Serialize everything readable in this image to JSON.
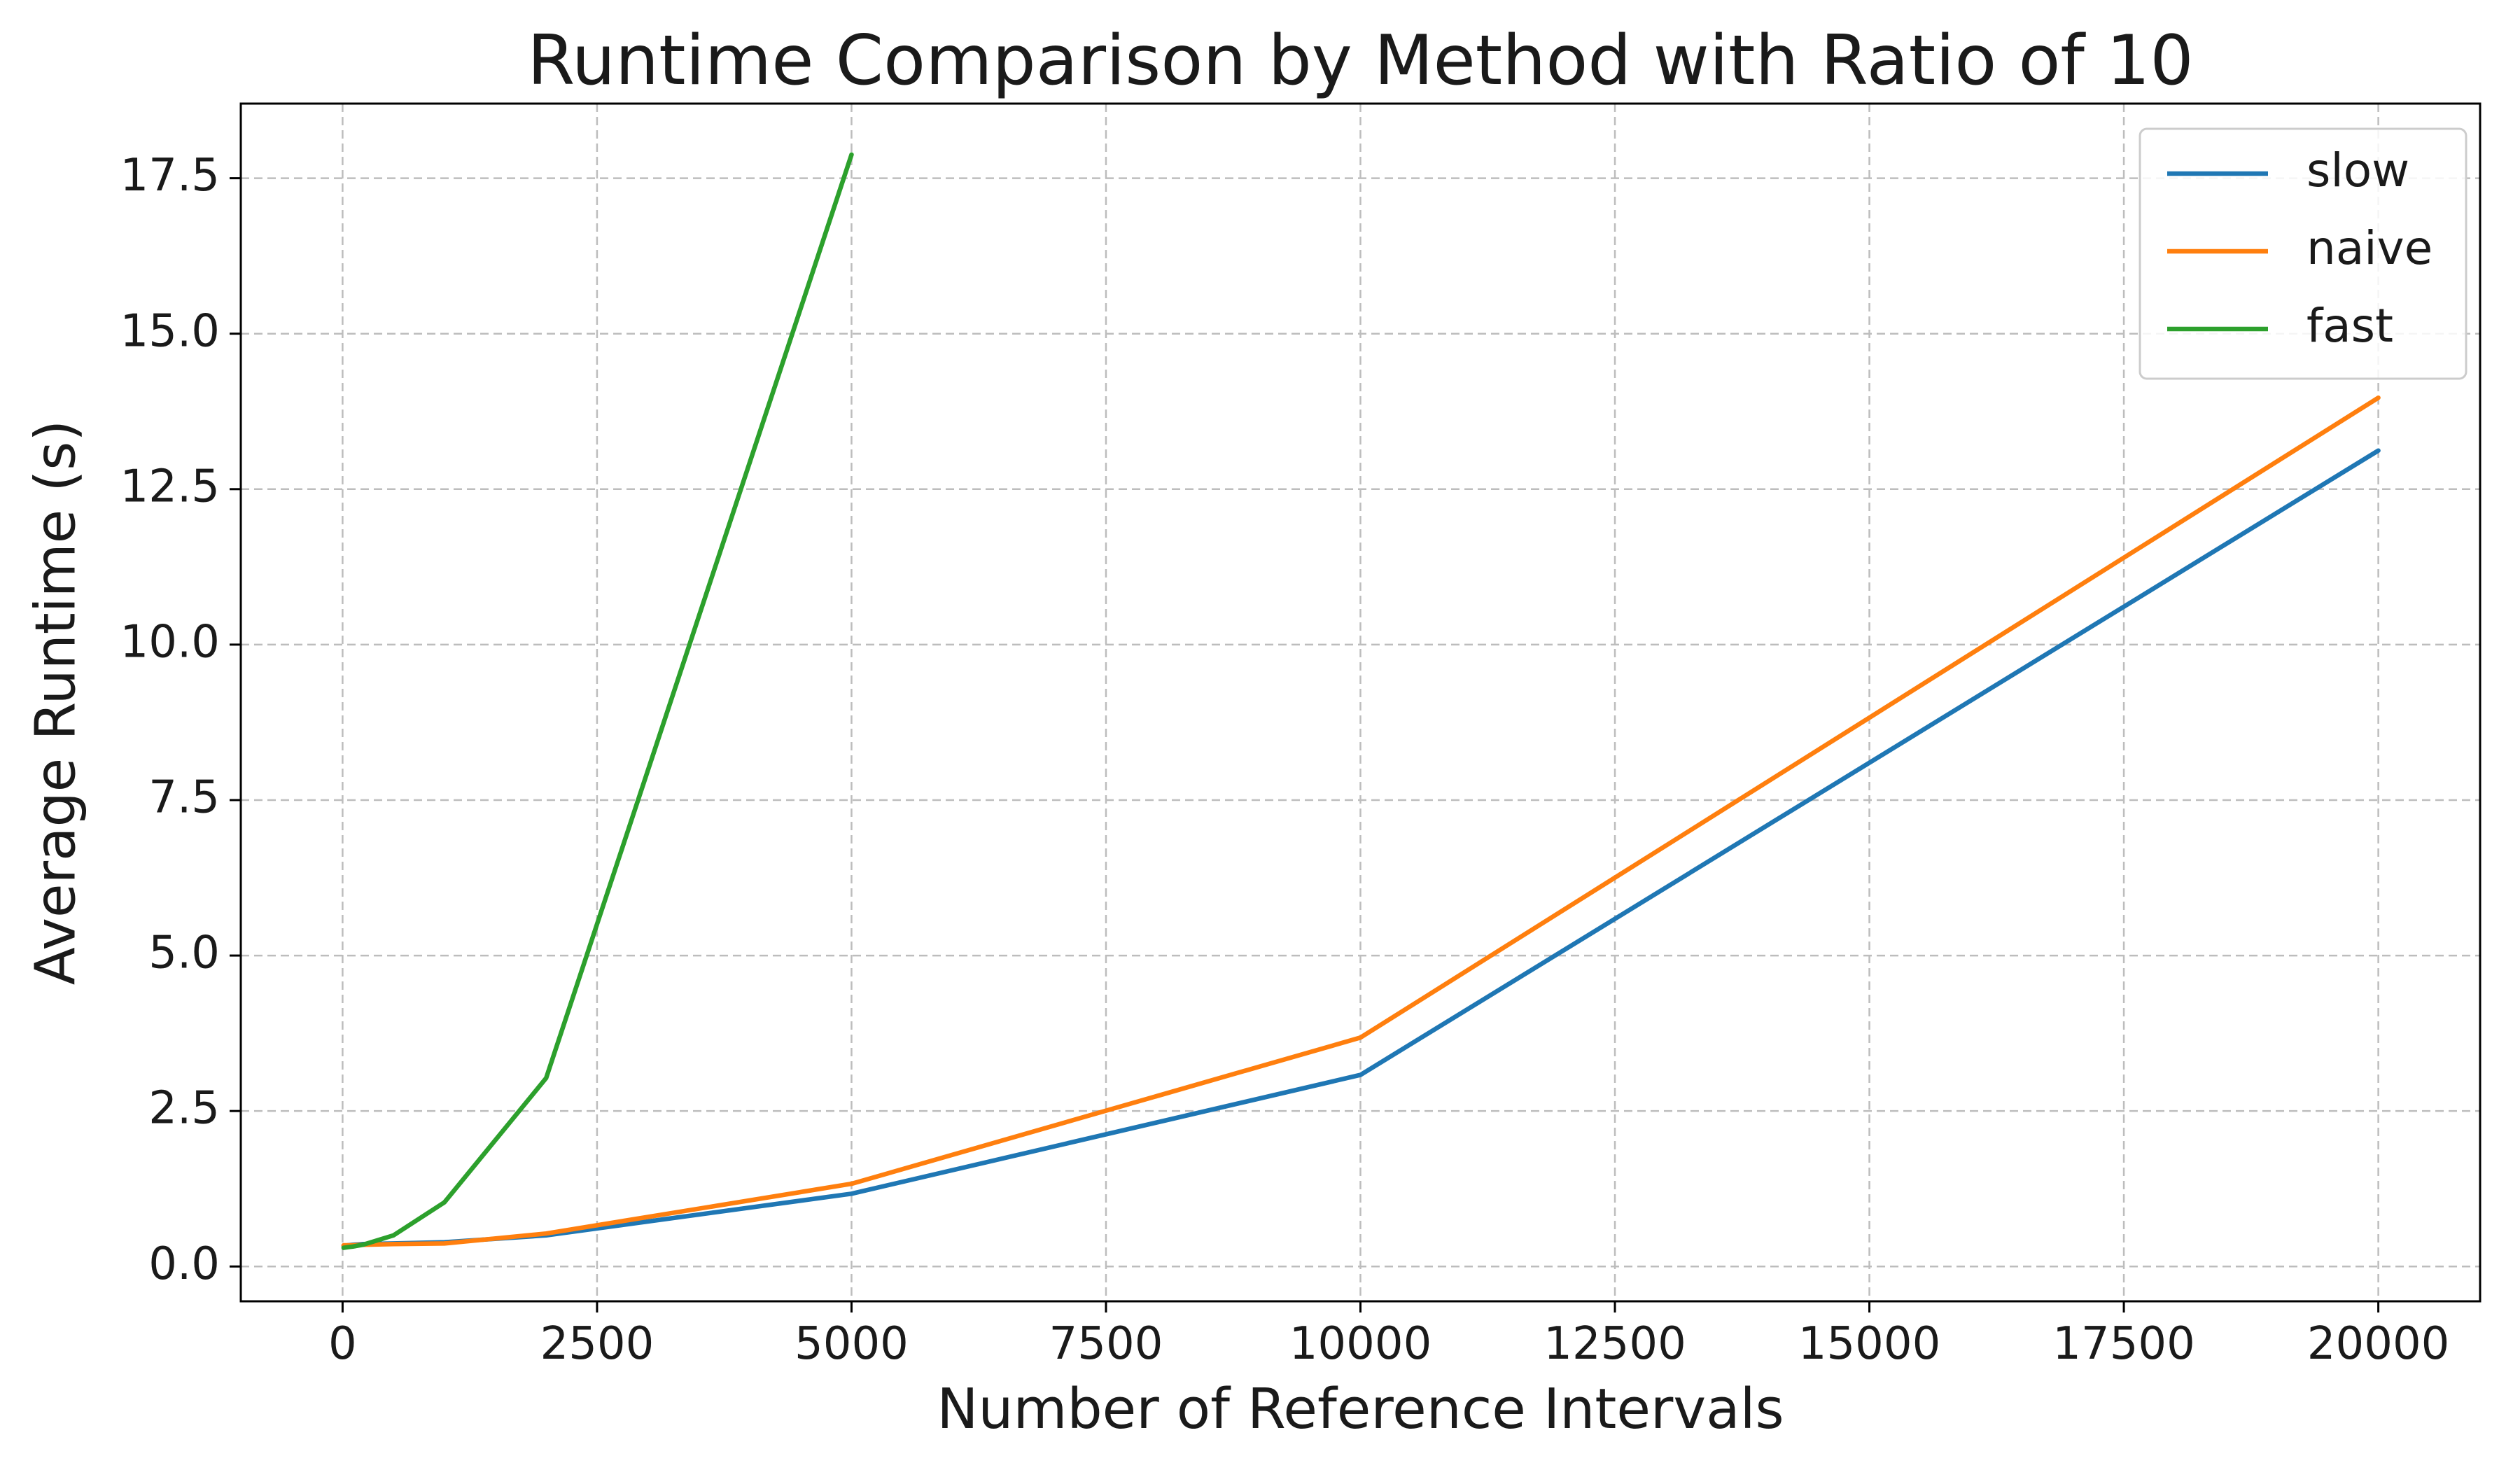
{
  "chart_data": {
    "type": "line",
    "title": "Runtime Comparison by Method with Ratio of 10",
    "xlabel": "Number of Reference Intervals",
    "ylabel": "Average Runtime (s)",
    "xlim": [
      -1000,
      21000
    ],
    "ylim": [
      -0.56,
      18.7
    ],
    "xticks": [
      0,
      2500,
      5000,
      7500,
      10000,
      12500,
      15000,
      17500,
      20000
    ],
    "yticks": [
      0.0,
      2.5,
      5.0,
      7.5,
      10.0,
      12.5,
      15.0,
      17.5
    ],
    "xtick_labels": [
      "0",
      "2500",
      "5000",
      "7500",
      "10000",
      "12500",
      "15000",
      "17500",
      "20000"
    ],
    "ytick_labels": [
      "0.0",
      "2.5",
      "5.0",
      "7.5",
      "10.0",
      "12.5",
      "15.0",
      "17.5"
    ],
    "grid": true,
    "legend_position": "top-right",
    "series": [
      {
        "name": "slow",
        "color": "#1f77b4",
        "x": [
          10,
          50,
          100,
          200,
          500,
          1000,
          2000,
          5000,
          10000,
          20000
        ],
        "y": [
          0.33,
          0.34,
          0.35,
          0.36,
          0.37,
          0.39,
          0.5,
          1.17,
          3.08,
          13.12
        ]
      },
      {
        "name": "naive",
        "color": "#ff7f0e",
        "x": [
          10,
          50,
          100,
          200,
          500,
          1000,
          2000,
          5000,
          10000,
          20000
        ],
        "y": [
          0.34,
          0.34,
          0.34,
          0.35,
          0.36,
          0.37,
          0.53,
          1.33,
          3.68,
          13.97
        ]
      },
      {
        "name": "fast",
        "color": "#2ca02c",
        "x": [
          10,
          50,
          100,
          200,
          500,
          1000,
          2000,
          5000
        ],
        "y": [
          0.3,
          0.31,
          0.32,
          0.35,
          0.5,
          1.03,
          3.03,
          17.88
        ]
      }
    ]
  }
}
